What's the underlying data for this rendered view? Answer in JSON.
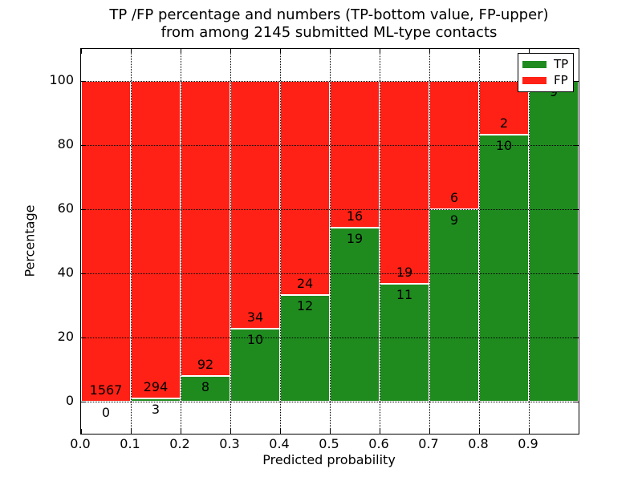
{
  "title": {
    "line1": "TP /FP percentage and numbers (TP-bottom value, FP-upper)",
    "line2": "from among 2145 submitted ML-type contacts"
  },
  "y_axis": {
    "label": "Percentage",
    "ticks": [
      0,
      20,
      40,
      60,
      80,
      100
    ]
  },
  "x_axis": {
    "label": "Predicted probability",
    "ticks": [
      "0.0",
      "0.1",
      "0.2",
      "0.3",
      "0.4",
      "0.5",
      "0.6",
      "0.7",
      "0.8",
      "0.9"
    ]
  },
  "legend": {
    "items": [
      {
        "label": "TP",
        "color": "#1f8b1f"
      },
      {
        "label": "FP",
        "color": "#ff2116"
      }
    ]
  },
  "chart_data": {
    "type": "bar",
    "stacked": true,
    "normalized_to_percent": true,
    "title": "TP /FP percentage and numbers (TP-bottom value, FP-upper) from among 2145 submitted ML-type contacts",
    "xlabel": "Predicted probability",
    "ylabel": "Percentage",
    "xlim": [
      0.0,
      1.0
    ],
    "ylim": [
      -10,
      110
    ],
    "grid": true,
    "grid_style": "dotted",
    "legend_position": "upper right",
    "bin_width": 0.1,
    "bin_starts": [
      0.0,
      0.1,
      0.2,
      0.3,
      0.4,
      0.5,
      0.6,
      0.7,
      0.8,
      0.9
    ],
    "total_contacts": 2145,
    "series": [
      {
        "name": "TP",
        "color": "#1f8b1f",
        "counts": [
          0,
          3,
          8,
          10,
          12,
          19,
          11,
          9,
          10,
          9
        ]
      },
      {
        "name": "FP",
        "color": "#ff2116",
        "counts": [
          1567,
          294,
          92,
          34,
          24,
          16,
          19,
          6,
          2,
          0
        ]
      }
    ],
    "tp_percent_of_bin": [
      0.0,
      1.0,
      8.0,
      22.7,
      33.3,
      54.3,
      36.7,
      60.0,
      83.3,
      100.0
    ],
    "bar_value_labels": {
      "tp": [
        "0",
        "3",
        "8",
        "10",
        "12",
        "19",
        "11",
        "9",
        "10",
        "9"
      ],
      "fp": [
        "1567",
        "294",
        "92",
        "34",
        "24",
        "16",
        "19",
        "6",
        "2",
        null
      ]
    }
  }
}
